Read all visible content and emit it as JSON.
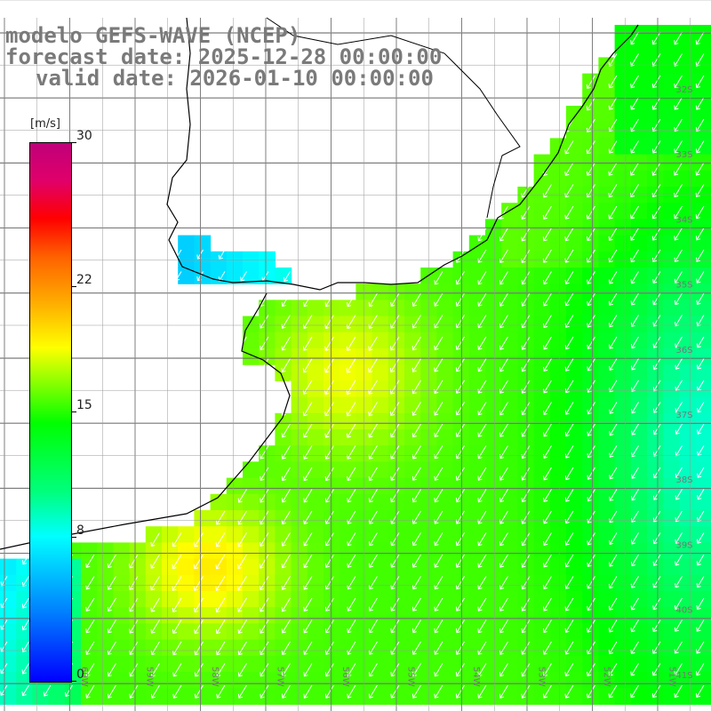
{
  "titles": {
    "line1": "modelo GEFS-WAVE (NCEP)",
    "line2": "forecast date: 2025-12-28 00:00:00",
    "line3": "valid date: 2026-01-10 00:00:00"
  },
  "colorbar": {
    "unit": "[m/s]",
    "min": 0,
    "max": 30,
    "ticks": [
      {
        "value": 30,
        "label": "30"
      },
      {
        "value": 22,
        "label": "22"
      },
      {
        "value": 15,
        "label": "15"
      },
      {
        "value": 8,
        "label": "8"
      },
      {
        "value": 0,
        "label": "0"
      }
    ]
  },
  "map": {
    "extent": {
      "lon_min": -61,
      "lon_max": -50,
      "lat_min": -41,
      "lat_max": -31
    },
    "lat_labels": [
      "32S",
      "33S",
      "34S",
      "35S",
      "36S",
      "37S",
      "38S",
      "39S",
      "40S",
      "41S"
    ],
    "lon_labels": [
      "60W",
      "59W",
      "58W",
      "57W",
      "56W",
      "55W",
      "54W",
      "53W",
      "52W",
      "51W"
    ],
    "land_color": "#ffffff",
    "grid_color": "#555555",
    "arrow_color": "#ffffff",
    "wind_direction_from": "northeast"
  }
}
